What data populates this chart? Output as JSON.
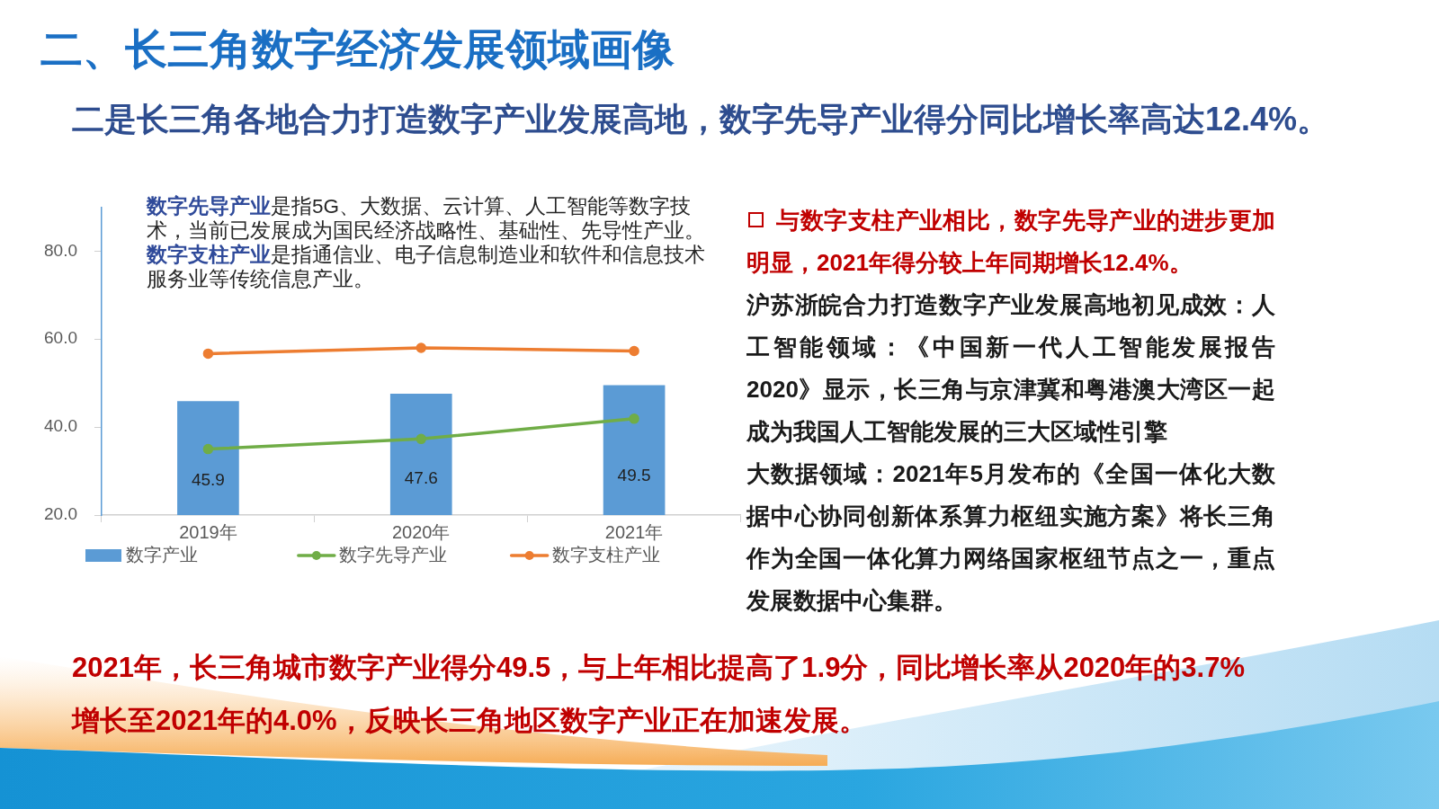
{
  "chart_data": {
    "type": "bar",
    "title": "二、长三角数字经济发展领域画像",
    "subtitle": "二是长三角各地合力打造数字产业发展高地，数字先导产业得分同比增长率高达12.4%。",
    "categories": [
      "2019年",
      "2020年",
      "2021年"
    ],
    "series": [
      {
        "name": "数字产业",
        "type": "bar",
        "color": "#5b9bd5",
        "values": [
          45.9,
          47.6,
          49.5
        ],
        "value_labels": [
          "45.9",
          "47.6",
          "49.5"
        ]
      },
      {
        "name": "数字先导产业",
        "type": "line",
        "color": "#70ad47",
        "values": [
          35.0,
          37.3,
          41.9
        ]
      },
      {
        "name": "数字支柱产业",
        "type": "line",
        "color": "#ed7d31",
        "values": [
          56.7,
          58.0,
          57.3
        ]
      }
    ],
    "ylim": [
      20,
      90
    ],
    "yticks": [
      {
        "value": 20,
        "label": "20.0"
      },
      {
        "value": 40,
        "label": "40.0"
      },
      {
        "value": 60,
        "label": "60.0"
      },
      {
        "value": 80,
        "label": "80.0"
      }
    ],
    "grid": false,
    "legend": "bottom",
    "marker": "circle",
    "line_style": "solid",
    "annotations": [
      "数字先导产业是指5G、大数据、云计算、人工智能等数字技术，当前已发展成为国民经济战略性、基础性、先导性产业。",
      "数字支柱产业是指通信业、电子信息制造业和软件和信息技术服务业等传统信息产业。",
      "与数字支柱产业相比，数字先导产业的进步更加明显，2021年得分较上年同期增长12.4%。",
      "沪苏浙皖合力打造数字产业发展高地初见成效：人工智能领域：《中国新一代人工智能发展报告2020》显示，长三角与京津冀和粤港澳大湾区一起成为我国人工智能发展的三大区域性引擎",
      "大数据领域：2021年5月发布的《全国一体化大数据中心协同创新体系算力枢纽实施方案》将长三角作为全国一体化算力网络国家枢纽节点之一，重点发展数据中心集群。",
      "2021年，长三角城市数字产业得分49.5，与上年相比提高了1.9分，同比增长率从2020年的3.7%增长至2021年的4.0%，反映长三角地区数字产业正在加速发展。"
    ]
  }
}
